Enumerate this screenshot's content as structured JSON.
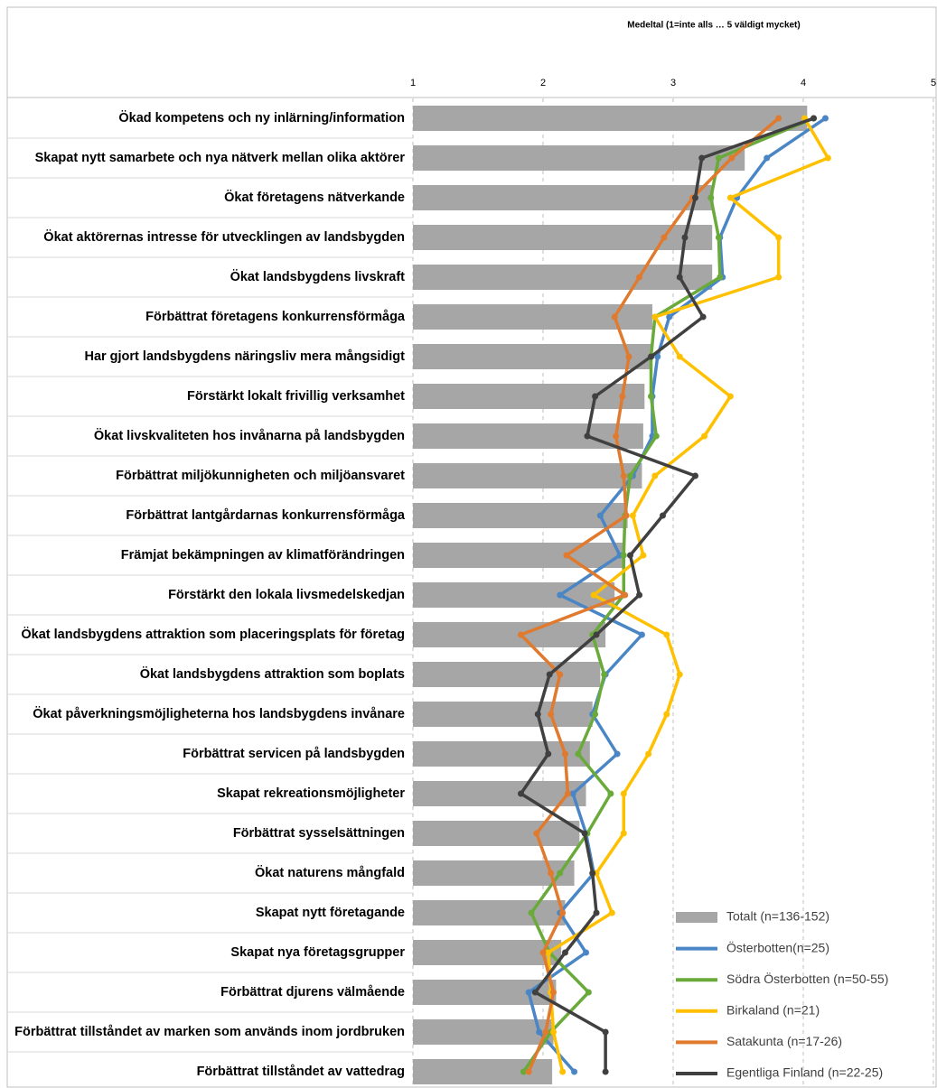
{
  "chart_data": {
    "type": "bar",
    "orientation": "horizontal",
    "title": "Medeltal  (1=inte alls … 5 väldigt mycket)",
    "categories": [
      "Ökad kompetens och ny inlärning/information",
      "Skapat nytt samarbete och nya nätverk  mellan olika aktörer",
      "Ökat företagens nätverkande",
      "Ökat aktörernas intresse för utvecklingen av landsbygden",
      "Ökat landsbygdens livskraft",
      "Förbättrat företagens konkurrensförmåga",
      "Har gjort landsbygdens näringsliv mera mångsidigt",
      "Förstärkt lokalt frivillig verksamhet",
      "Ökat livskvaliteten hos invånarna på landsbygden",
      "Förbättrat miljökunnigheten och miljöansvaret",
      "Förbättrat lantgårdarnas konkurrensförmåga",
      "Främjat bekämpningen av klimatförändringen",
      "Förstärkt den lokala livsmedelskedjan",
      "Ökat landsbygdens attraktion som placeringsplats för företag",
      "Ökat landsbygdens attraktion som boplats",
      "Ökat påverkningsmöjligheterna hos landsbygdens invånare",
      "Förbättrat servicen på landsbygden",
      "Skapat rekreationsmöjligheter",
      "Förbättrat sysselsättningen",
      "Ökat naturens mångfald",
      "Skapat nytt företagande",
      "Skapat nya företagsgrupper",
      "Förbättrat djurens välmående",
      "Förbättrat tillståndet av marken som används inom jordbruken",
      "Förbättrat tillståndet av vattedrag"
    ],
    "series": [
      {
        "name": "Totalt (n=136-152)",
        "type": "bar",
        "color": "#a6a6a6",
        "values": [
          4.03,
          3.55,
          3.31,
          3.3,
          3.3,
          2.84,
          2.83,
          2.78,
          2.77,
          2.76,
          2.65,
          2.62,
          2.55,
          2.48,
          2.44,
          2.38,
          2.36,
          2.33,
          2.28,
          2.24,
          2.17,
          2.14,
          2.1,
          2.08,
          2.07
        ]
      },
      {
        "name": "Österbotten(n=25)",
        "type": "line",
        "color": "#4a86c5",
        "values": [
          4.17,
          3.72,
          3.49,
          3.36,
          3.38,
          2.97,
          2.88,
          2.84,
          2.84,
          2.69,
          2.44,
          2.59,
          2.13,
          2.76,
          2.48,
          2.38,
          2.57,
          2.23,
          2.33,
          2.39,
          2.13,
          2.33,
          1.89,
          1.97,
          2.24
        ]
      },
      {
        "name": "Södra Österbotten (n=50-55)",
        "type": "line",
        "color": "#6aaa3a",
        "values": [
          4.08,
          3.35,
          3.29,
          3.35,
          3.36,
          2.86,
          2.83,
          2.83,
          2.87,
          2.67,
          2.63,
          2.62,
          2.62,
          2.38,
          2.47,
          2.4,
          2.27,
          2.52,
          2.34,
          2.13,
          1.91,
          2.05,
          2.35,
          2.06,
          1.85
        ]
      },
      {
        "name": "Birkaland (n=21)",
        "type": "line",
        "color": "#ffc000",
        "values": [
          4.01,
          4.19,
          3.44,
          3.81,
          3.81,
          2.86,
          3.05,
          3.44,
          3.24,
          2.86,
          2.69,
          2.77,
          2.39,
          2.95,
          3.05,
          2.95,
          2.81,
          2.62,
          2.62,
          2.41,
          2.53,
          2.04,
          2.06,
          2.08,
          2.15
        ]
      },
      {
        "name": "Satakunta (n=17-26)",
        "type": "line",
        "color": "#e07a2e",
        "values": [
          3.81,
          3.45,
          3.15,
          2.93,
          2.74,
          2.55,
          2.66,
          2.61,
          2.56,
          2.62,
          2.64,
          2.18,
          2.63,
          1.83,
          2.13,
          2.06,
          2.17,
          2.19,
          1.95,
          2.06,
          2.15,
          2.0,
          2.08,
          2.02,
          1.89
        ]
      },
      {
        "name": "Egentliga Finland (n=22-25)",
        "type": "line",
        "color": "#404040",
        "values": [
          4.08,
          3.22,
          3.17,
          3.09,
          3.05,
          3.23,
          2.83,
          2.4,
          2.34,
          3.17,
          2.92,
          2.67,
          2.74,
          2.41,
          2.05,
          1.96,
          2.04,
          1.83,
          2.32,
          2.38,
          2.41,
          2.17,
          1.94,
          2.48,
          2.48
        ]
      }
    ],
    "xlim": [
      1,
      5
    ],
    "xticks": [
      1,
      2,
      3,
      4,
      5
    ],
    "grid": true,
    "legend": "lower right"
  }
}
